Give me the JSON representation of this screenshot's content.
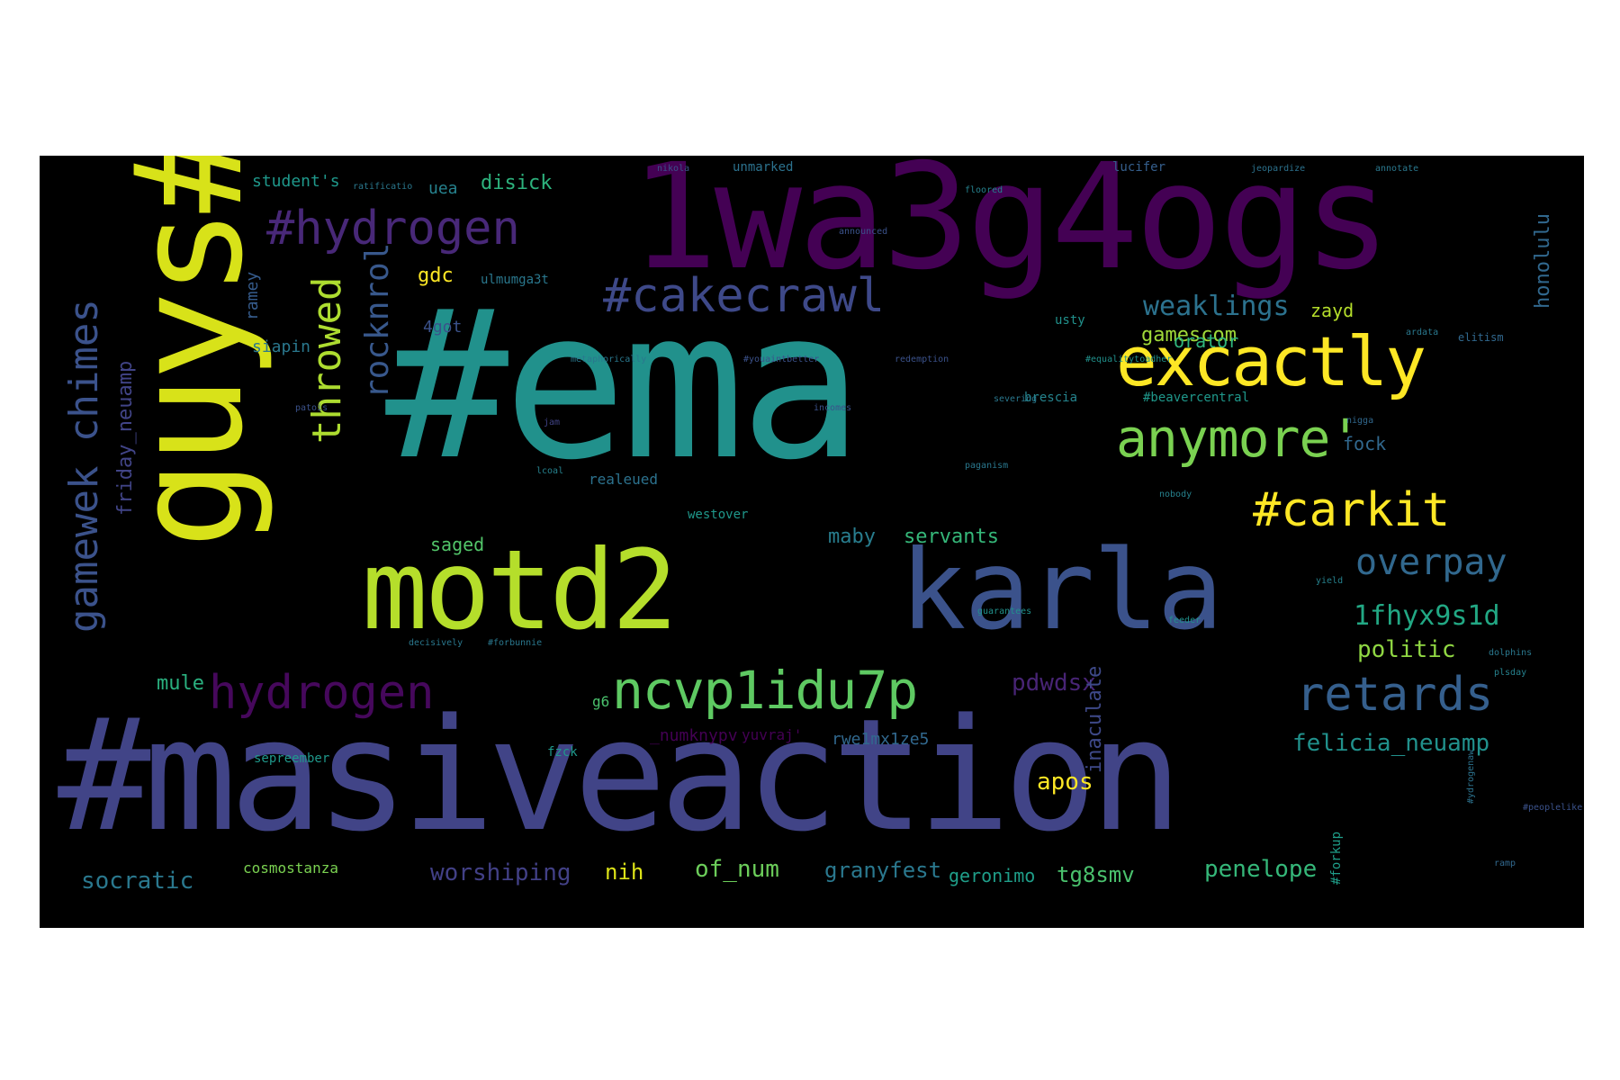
{
  "words": [
    {
      "text": "#ema",
      "color": "#21918c"
    },
    {
      "text": "#masiveaction",
      "color": "#414487"
    },
    {
      "text": "1wa3g4ogs",
      "color": "#440154"
    },
    {
      "text": "guys#",
      "color": "#d8e219"
    },
    {
      "text": "motd2",
      "color": "#b5de2b"
    },
    {
      "text": "karla",
      "color": "#3b528b"
    },
    {
      "text": "excactly",
      "color": "#fde725"
    },
    {
      "text": "anymore'",
      "color": "#7ad151"
    },
    {
      "text": "#hydrogen",
      "color": "#482878"
    },
    {
      "text": "#cakecrawl",
      "color": "#3e4989"
    },
    {
      "text": "ncvp1idu7p",
      "color": "#5ec962"
    },
    {
      "text": "hydrogen",
      "color": "#46085c"
    },
    {
      "text": "#carkit",
      "color": "#fde725"
    },
    {
      "text": "overpay",
      "color": "#31688e"
    },
    {
      "text": "retards",
      "color": "#355f8d"
    },
    {
      "text": "gamewek chimes",
      "color": "#3b528b"
    },
    {
      "text": "throwed",
      "color": "#addc30"
    },
    {
      "text": "rocknrol",
      "color": "#38588c"
    },
    {
      "text": "1fhyx9s1d",
      "color": "#22a884"
    },
    {
      "text": "weaklings",
      "color": "#2c728e"
    },
    {
      "text": "gamescom",
      "color": "#a0da39"
    },
    {
      "text": "felicia_neuamp",
      "color": "#21918c"
    },
    {
      "text": "apos",
      "color": "#fde725"
    },
    {
      "text": "socratic",
      "color": "#2a788e"
    },
    {
      "text": "cosmostanza",
      "color": "#7ad151"
    },
    {
      "text": "worshiping",
      "color": "#424086"
    },
    {
      "text": "nih",
      "color": "#dde318"
    },
    {
      "text": "of_num",
      "color": "#6ccd5a"
    },
    {
      "text": "granyfest",
      "color": "#2a788e"
    },
    {
      "text": "geronimo",
      "color": "#1f9e89"
    },
    {
      "text": "tg8smv",
      "color": "#4ac16d"
    },
    {
      "text": "penelope",
      "color": "#35b779"
    },
    {
      "text": "pdwdsx",
      "color": "#482475"
    },
    {
      "text": "politic",
      "color": "#90d743"
    },
    {
      "text": "saged",
      "color": "#52c569"
    },
    {
      "text": "servants",
      "color": "#35b779"
    },
    {
      "text": "maby",
      "color": "#287d8e"
    },
    {
      "text": "mule",
      "color": "#2ab07f"
    },
    {
      "text": "gdc",
      "color": "#fde725"
    },
    {
      "text": "disick",
      "color": "#2db27d"
    },
    {
      "text": "uea",
      "color": "#26828e"
    },
    {
      "text": "student's",
      "color": "#1f988b"
    },
    {
      "text": "honolulu",
      "color": "#31688e"
    },
    {
      "text": "friday_neuamp",
      "color": "#414487"
    },
    {
      "text": "inaculate",
      "color": "#3e4989"
    },
    {
      "text": "ramey",
      "color": "#365c8d"
    },
    {
      "text": "orator",
      "color": "#2fb47c"
    },
    {
      "text": "zayd",
      "color": "#b5de2b"
    },
    {
      "text": "4got",
      "color": "#3b528b"
    },
    {
      "text": "siapin",
      "color": "#2a788e"
    },
    {
      "text": "fock",
      "color": "#31688e"
    },
    {
      "text": "realeued",
      "color": "#2c728e"
    },
    {
      "text": "westover",
      "color": "#1f988b"
    },
    {
      "text": "usty",
      "color": "#21918c"
    },
    {
      "text": "brescia",
      "color": "#25848e"
    },
    {
      "text": "#beavercentral",
      "color": "#1f988b"
    },
    {
      "text": "unmarked",
      "color": "#2c728e"
    },
    {
      "text": "lucifer",
      "color": "#355f8d"
    },
    {
      "text": "ulmumga3t",
      "color": "#2a788e"
    },
    {
      "text": "_numknypv",
      "color": "#440154"
    },
    {
      "text": "yuvraj'",
      "color": "#440154"
    },
    {
      "text": "rwe1mx1ze5",
      "color": "#31688e"
    },
    {
      "text": "g6",
      "color": "#4ac16d"
    },
    {
      "text": "fzck",
      "color": "#1f988b"
    },
    {
      "text": "sepreember",
      "color": "#1f988b"
    },
    {
      "text": "#forkup",
      "color": "#1f9e89"
    },
    {
      "text": "jeopardize",
      "color": "#2c728e"
    },
    {
      "text": "annotate",
      "color": "#2a788e"
    },
    {
      "text": "nikola",
      "color": "#3b528b"
    },
    {
      "text": "metaphorically",
      "color": "#2a788e"
    },
    {
      "text": "redemption",
      "color": "#3b528b"
    },
    {
      "text": "#equalitytoadher",
      "color": "#21918c"
    },
    {
      "text": "elitism",
      "color": "#31688e"
    },
    {
      "text": "ardata",
      "color": "#2a788e"
    },
    {
      "text": "severing",
      "color": "#2a788e"
    },
    {
      "text": "patois",
      "color": "#3b528b"
    },
    {
      "text": "incomes",
      "color": "#3b528b"
    },
    {
      "text": "jam",
      "color": "#414487"
    },
    {
      "text": "lcoal",
      "color": "#26828e"
    },
    {
      "text": "paganism",
      "color": "#2a788e"
    },
    {
      "text": "nobody",
      "color": "#26828e"
    },
    {
      "text": "guarantees",
      "color": "#21918c"
    },
    {
      "text": "#youaintbetter",
      "color": "#3b528b"
    },
    {
      "text": "#forbunnie",
      "color": "#2a788e"
    },
    {
      "text": "decisively",
      "color": "#2a788e"
    },
    {
      "text": "#peoplelike",
      "color": "#3b528b"
    },
    {
      "text": "yield",
      "color": "#26828e"
    },
    {
      "text": "dolphins",
      "color": "#2a788e"
    },
    {
      "text": "ramp",
      "color": "#31688e"
    },
    {
      "text": "plsday",
      "color": "#26828e"
    },
    {
      "text": "nigga",
      "color": "#31688e"
    },
    {
      "text": "feeder",
      "color": "#21918c"
    },
    {
      "text": "ratificatio",
      "color": "#2a788e"
    },
    {
      "text": "floored",
      "color": "#26828e"
    },
    {
      "text": "announced",
      "color": "#3b528b"
    },
    {
      "text": "#ydrogenaw",
      "color": "#2c728e"
    }
  ]
}
